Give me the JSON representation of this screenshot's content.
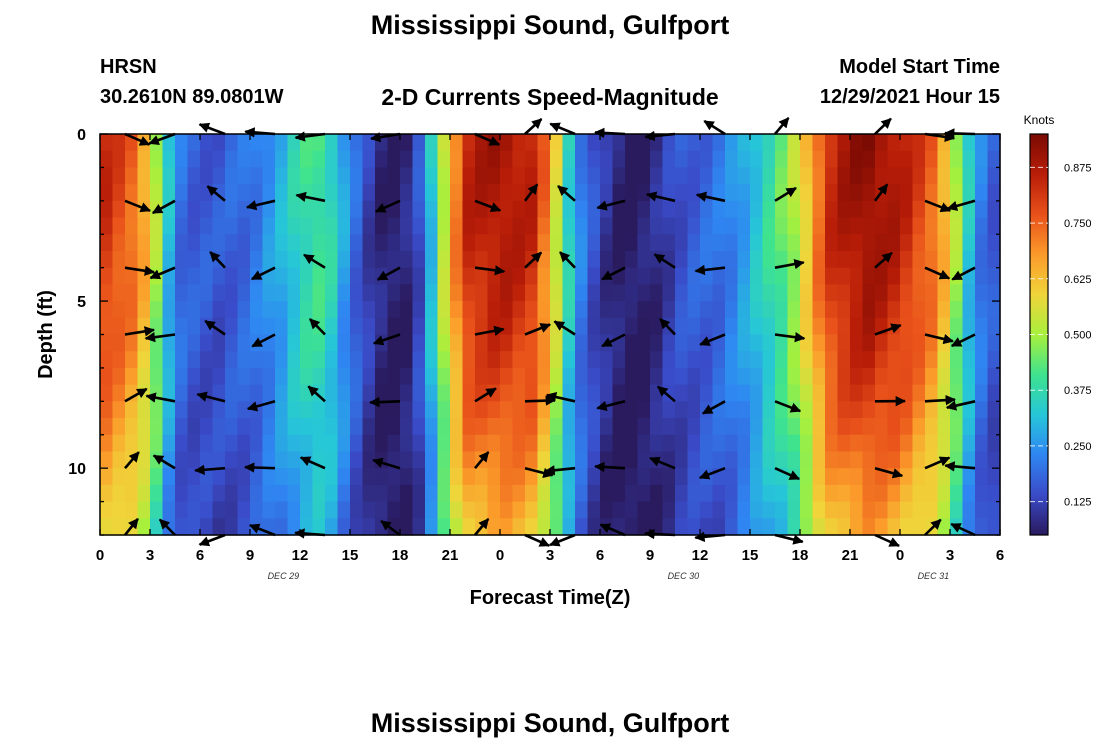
{
  "header": {
    "title": "Mississippi Sound, Gulfport",
    "station": "HRSN",
    "coordinates": "30.2610N  89.0801W",
    "subtitle": "2-D Currents Speed-Magnitude",
    "model_start_label": "Model Start Time",
    "model_start_value": "12/29/2021 Hour 15"
  },
  "footer": {
    "title": "Mississippi Sound, Gulfport"
  },
  "chart_data": {
    "type": "heatmap",
    "title": "2-D Currents Speed-Magnitude",
    "xlabel": "Forecast Time(Z)",
    "ylabel": "Depth (ft)",
    "x_tick_labels": [
      "0",
      "3",
      "6",
      "9",
      "12",
      "15",
      "18",
      "21",
      "0",
      "3",
      "6",
      "9",
      "12",
      "15",
      "18",
      "21",
      "0",
      "3",
      "6"
    ],
    "date_labels": [
      {
        "label": "DEC 29",
        "x_hour": 11
      },
      {
        "label": "DEC 30",
        "x_hour": 35
      },
      {
        "label": "DEC 31",
        "x_hour": 50
      }
    ],
    "xlim": [
      0,
      54
    ],
    "ylim": [
      0,
      12
    ],
    "y_axis_inverted": true,
    "y_tick_labels": [
      0,
      5,
      10
    ],
    "colorbar": {
      "label": "Knots",
      "ticks": [
        0.125,
        0.25,
        0.375,
        0.5,
        0.625,
        0.75,
        0.875
      ],
      "tick_labels": [
        "0.125",
        "0.250",
        "0.375",
        "0.500",
        "0.625",
        "0.750",
        "0.875"
      ],
      "range": [
        0.05,
        0.95
      ],
      "colormap": [
        "#2a1a5e",
        "#3a4bc8",
        "#2f86f2",
        "#26c6d8",
        "#3fe38e",
        "#a8f03c",
        "#f0d43a",
        "#fb9a2a",
        "#e8501a",
        "#b81d08",
        "#7a0a03"
      ]
    },
    "speed_profile_knots": [
      [
        0,
        0.85
      ],
      [
        2,
        0.75
      ],
      [
        3,
        0.62
      ],
      [
        4,
        0.33
      ],
      [
        5,
        0.18
      ],
      [
        7,
        0.16
      ],
      [
        9,
        0.2
      ],
      [
        11,
        0.3
      ],
      [
        12,
        0.38
      ],
      [
        13,
        0.42
      ],
      [
        14,
        0.36
      ],
      [
        15,
        0.22
      ],
      [
        16,
        0.13
      ],
      [
        17,
        0.07
      ],
      [
        18,
        0.05
      ],
      [
        19,
        0.12
      ],
      [
        20,
        0.35
      ],
      [
        21,
        0.65
      ],
      [
        22,
        0.85
      ],
      [
        24,
        0.9
      ],
      [
        26,
        0.85
      ],
      [
        27,
        0.68
      ],
      [
        28,
        0.38
      ],
      [
        29,
        0.2
      ],
      [
        30,
        0.12
      ],
      [
        31,
        0.07
      ],
      [
        32,
        0.05
      ],
      [
        33,
        0.07
      ],
      [
        34,
        0.12
      ],
      [
        35,
        0.16
      ],
      [
        36,
        0.18
      ],
      [
        37,
        0.2
      ],
      [
        38,
        0.24
      ],
      [
        39,
        0.3
      ],
      [
        40,
        0.38
      ],
      [
        41,
        0.45
      ],
      [
        42,
        0.55
      ],
      [
        43,
        0.73
      ],
      [
        44,
        0.86
      ],
      [
        46,
        0.93
      ],
      [
        48,
        0.87
      ],
      [
        50,
        0.75
      ],
      [
        51,
        0.6
      ],
      [
        52,
        0.35
      ],
      [
        53,
        0.2
      ],
      [
        54,
        0.15
      ]
    ],
    "vector_times_hours": [
      1.5,
      4.5,
      7.5,
      10.5,
      13.5,
      18,
      22.5,
      25.5,
      28.5,
      31.5,
      34.5,
      37.5,
      40.5,
      46.5,
      49.5,
      52.5
    ],
    "vector_depths_ft": [
      0,
      2,
      4,
      6,
      8,
      10,
      12
    ],
    "grid": false
  }
}
